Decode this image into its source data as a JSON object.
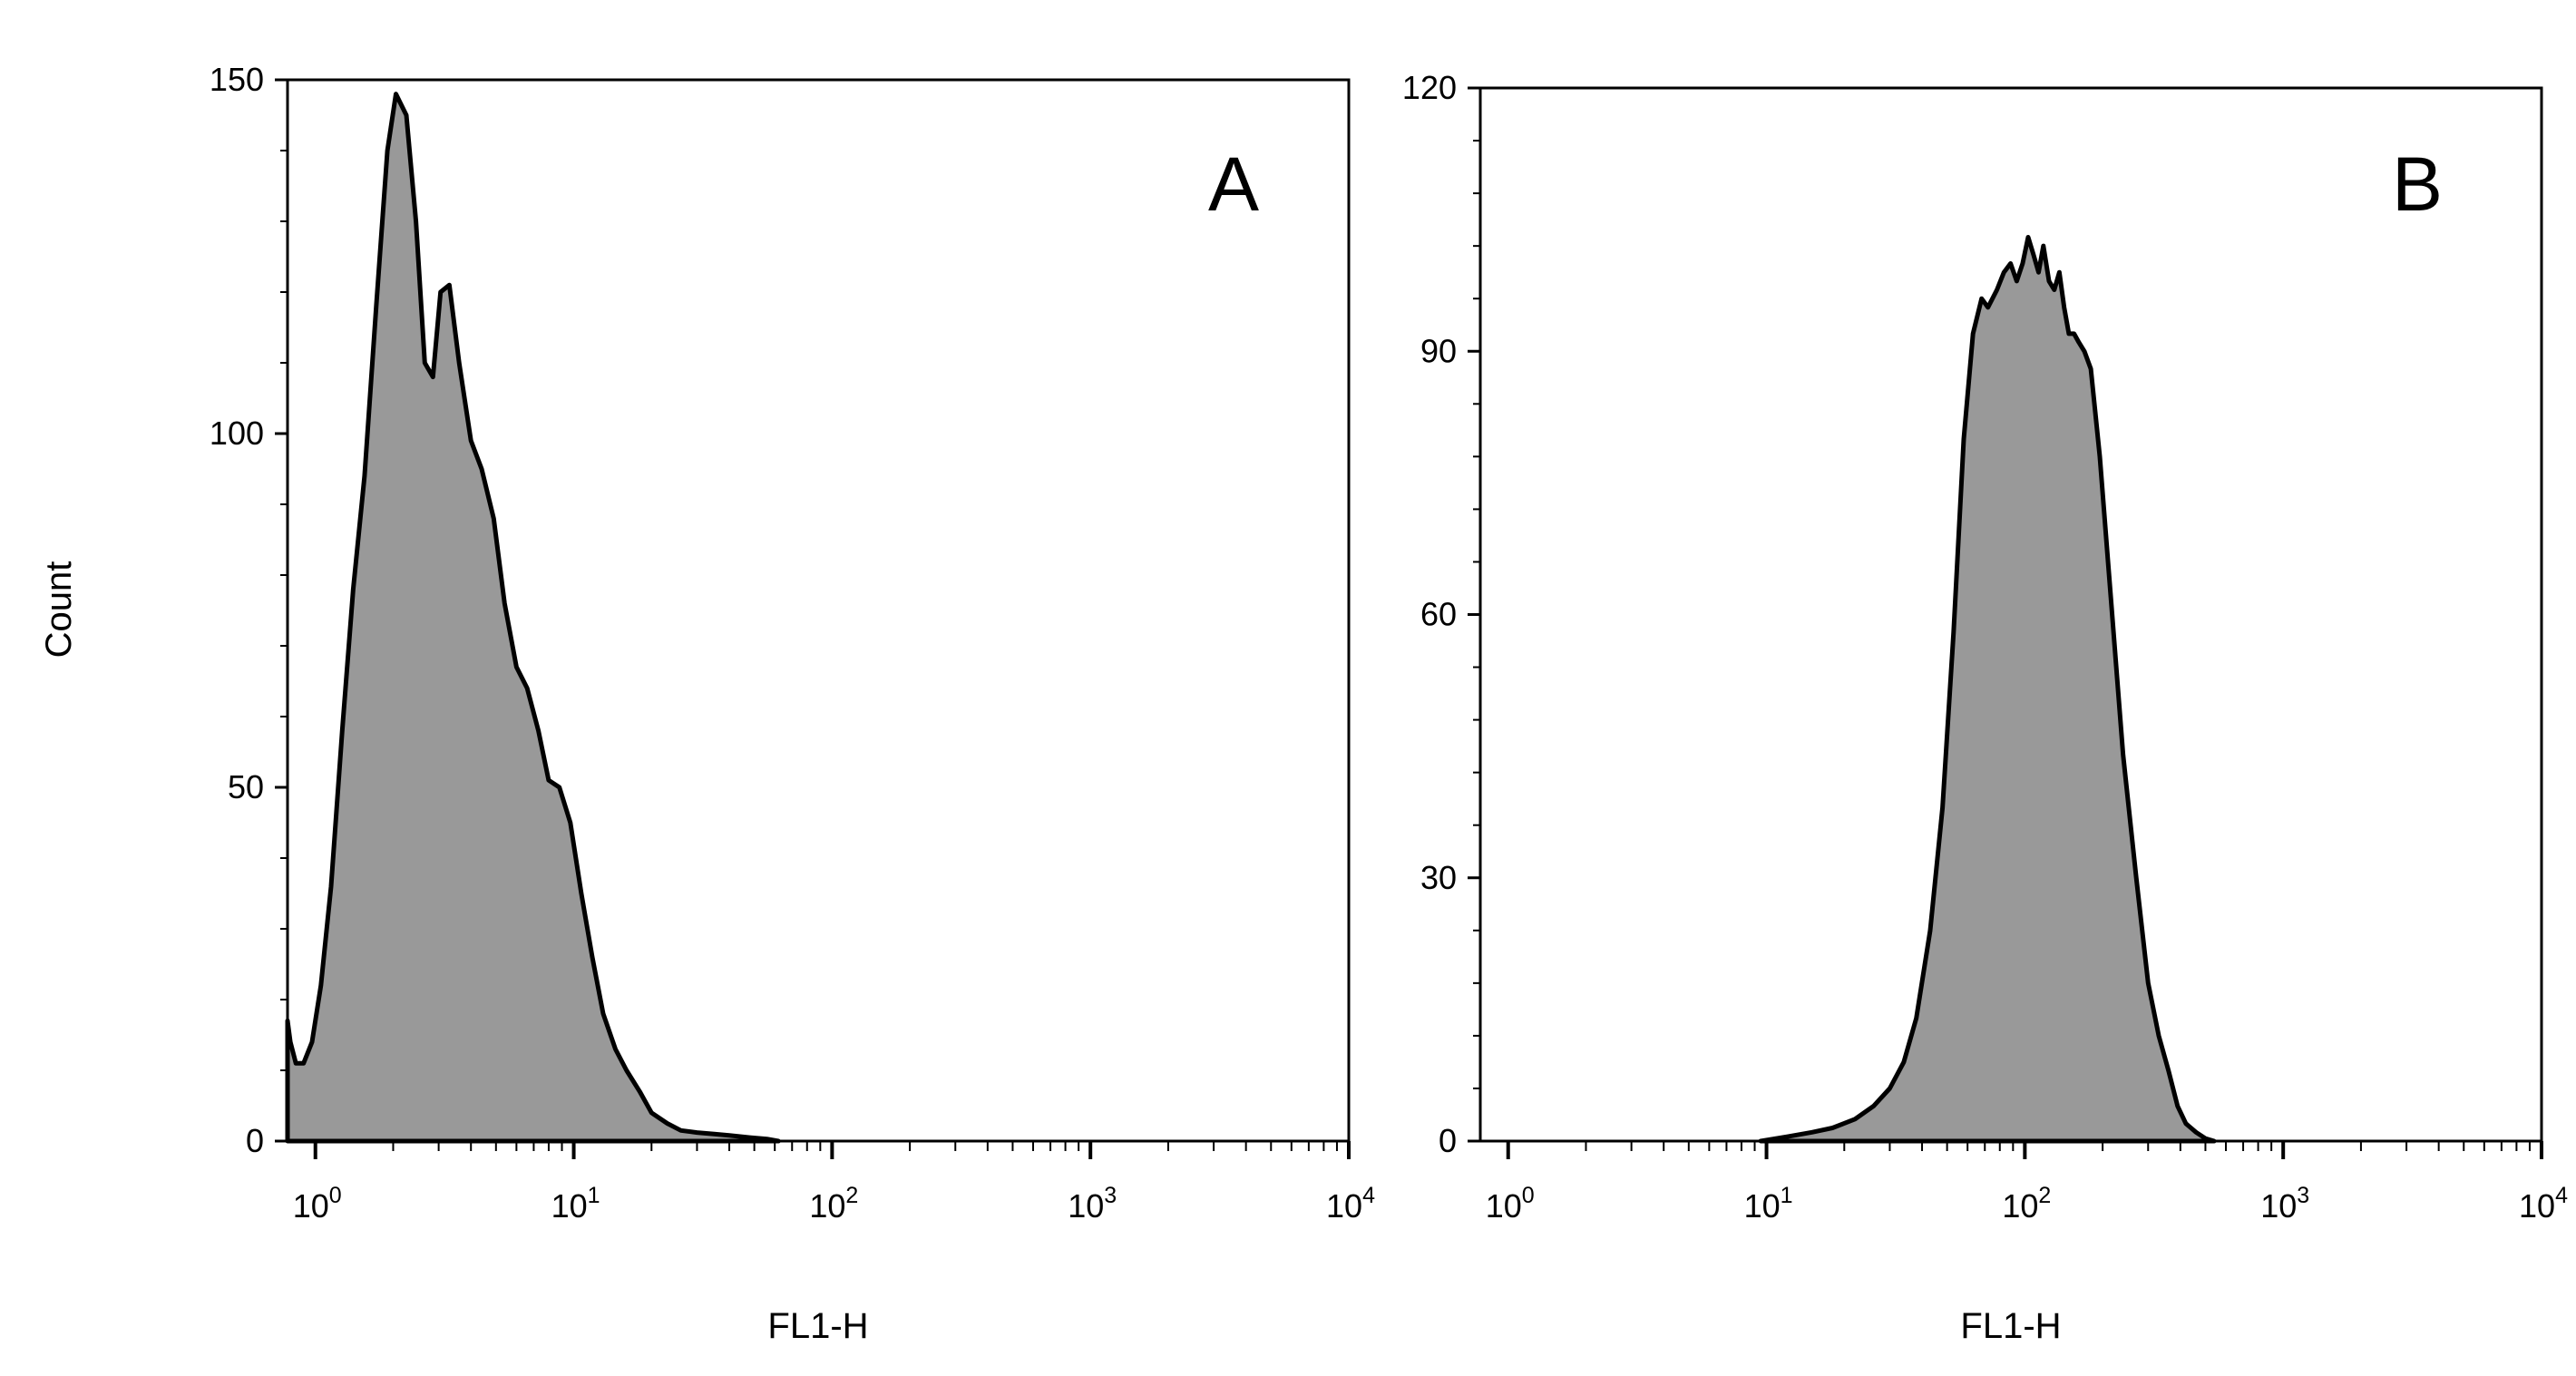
{
  "figure": {
    "ylabel": "Count",
    "colors": {
      "fill": "#999999",
      "stroke": "#000000",
      "background": "#ffffff"
    }
  },
  "chart_data": [
    {
      "type": "area",
      "panel_label": "A",
      "xlabel": "FL1-H",
      "ylabel": "Count",
      "x_scale": "log",
      "xlim": [
        0.78,
        10000
      ],
      "ylim": [
        0,
        150
      ],
      "y_ticks": [
        0,
        50,
        100,
        150
      ],
      "y_tick_labels": [
        "0",
        "50",
        "100",
        "150"
      ],
      "x_ticks": [
        {
          "value": 1,
          "base": "10",
          "exp": "0"
        },
        {
          "value": 10,
          "base": "10",
          "exp": "1"
        },
        {
          "value": 100,
          "base": "10",
          "exp": "2"
        },
        {
          "value": 1000,
          "base": "10",
          "exp": "3"
        },
        {
          "value": 10000,
          "base": "10",
          "exp": "4"
        }
      ],
      "grid": false,
      "series": [
        {
          "x": [
            0.78,
            0.8,
            0.84,
            0.9,
            0.97,
            1.05,
            1.15,
            1.27,
            1.4,
            1.55,
            1.72,
            1.9,
            2.05,
            2.25,
            2.45,
            2.65,
            2.85,
            3.05,
            3.3,
            3.6,
            4.0,
            4.4,
            4.9,
            5.4,
            6.0,
            6.6,
            7.3,
            8.0,
            8.8,
            9.7,
            10.7,
            11.8,
            13.0,
            14.5,
            16.0,
            18.0,
            20.0,
            23.0,
            26.0,
            30.0,
            35.0,
            40.0,
            48.0,
            56.0,
            62.0
          ],
          "y": [
            17,
            14,
            11,
            11,
            14,
            22,
            36,
            58,
            78,
            94,
            118,
            140,
            148,
            145,
            130,
            110,
            108,
            120,
            121,
            110,
            99,
            95,
            88,
            76,
            67,
            64,
            58,
            51,
            50,
            45,
            35,
            26,
            18,
            13,
            10,
            7,
            4,
            2.5,
            1.5,
            1.2,
            1,
            0.8,
            0.5,
            0.3,
            0
          ]
        }
      ]
    },
    {
      "type": "area",
      "panel_label": "B",
      "xlabel": "FL1-H",
      "ylabel": "",
      "x_scale": "log",
      "xlim": [
        0.78,
        10000
      ],
      "ylim": [
        0,
        120
      ],
      "y_ticks": [
        0,
        30,
        60,
        90,
        120
      ],
      "y_tick_labels": [
        "0",
        "30",
        "60",
        "90",
        "120"
      ],
      "x_ticks": [
        {
          "value": 1,
          "base": "10",
          "exp": "0"
        },
        {
          "value": 10,
          "base": "10",
          "exp": "1"
        },
        {
          "value": 100,
          "base": "10",
          "exp": "2"
        },
        {
          "value": 1000,
          "base": "10",
          "exp": "3"
        },
        {
          "value": 10000,
          "base": "10",
          "exp": "4"
        }
      ],
      "grid": false,
      "series": [
        {
          "x": [
            9.5,
            12,
            15,
            18,
            22,
            26,
            30,
            34,
            38,
            43,
            48,
            53,
            58,
            63,
            68,
            72,
            78,
            83,
            88,
            93,
            98,
            103,
            108,
            113,
            118,
            124,
            130,
            136,
            142,
            148,
            155,
            162,
            170,
            180,
            195,
            215,
            240,
            270,
            300,
            330,
            360,
            390,
            420,
            460,
            500,
            540
          ],
          "y": [
            0,
            0.5,
            1,
            1.5,
            2.5,
            4,
            6,
            9,
            14,
            24,
            38,
            58,
            80,
            92,
            96,
            95,
            97,
            99,
            100,
            98,
            100,
            103,
            101,
            99,
            102,
            98,
            97,
            99,
            95,
            92,
            92,
            91,
            90,
            88,
            78,
            62,
            44,
            30,
            18,
            12,
            8,
            4,
            2,
            1,
            0.3,
            0
          ]
        }
      ]
    }
  ]
}
